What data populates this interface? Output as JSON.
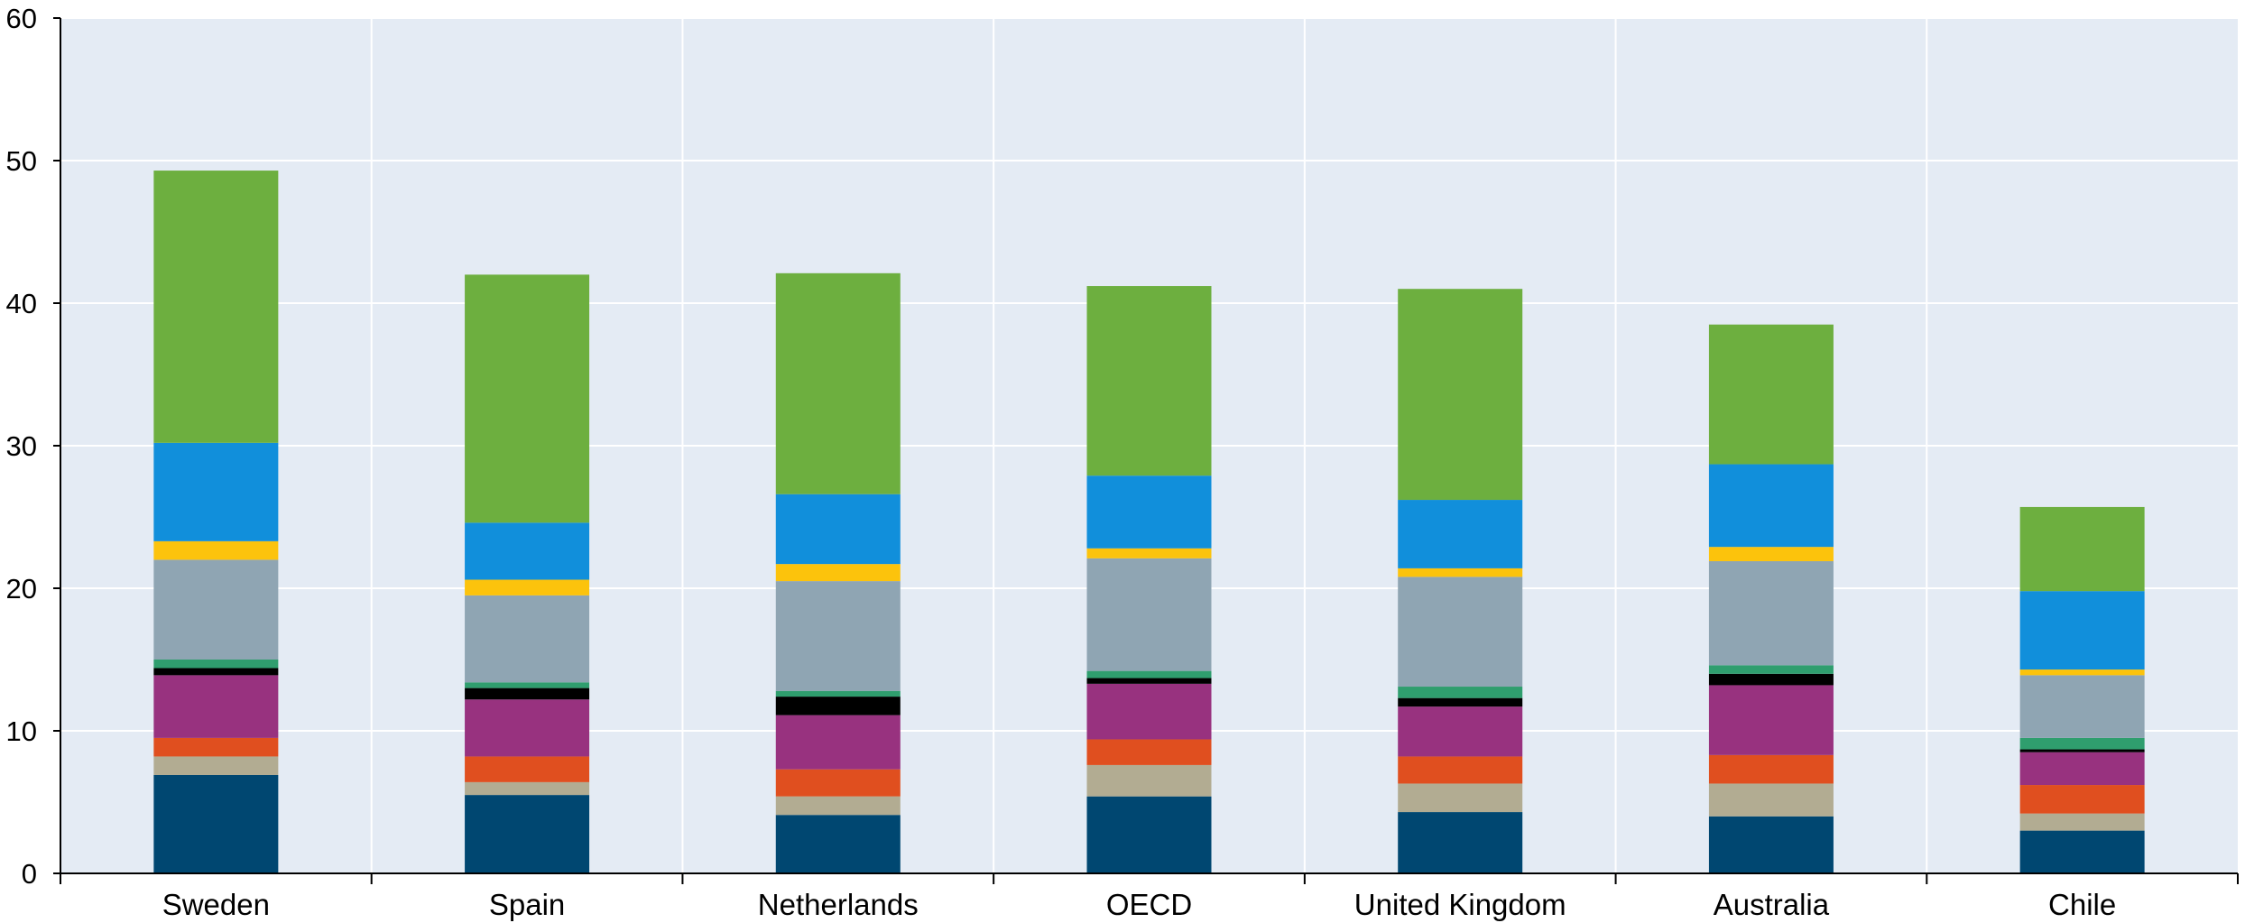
{
  "chart_data": {
    "type": "bar",
    "stacked": true,
    "categories": [
      "Sweden",
      "Spain",
      "Netherlands",
      "OECD",
      "United Kingdom",
      "Australia",
      "Chile"
    ],
    "ylim": [
      0,
      60
    ],
    "yticks": [
      0,
      10,
      20,
      30,
      40,
      50,
      60
    ],
    "ytick_labels": [
      "0",
      "10",
      "20",
      "30",
      "40",
      "50",
      "60"
    ],
    "grid": true,
    "background": "#e4ebf4",
    "series": [
      {
        "color": "#004771",
        "values": [
          6.9,
          5.5,
          4.1,
          5.4,
          4.3,
          4.0,
          3.0
        ]
      },
      {
        "color": "#b2ac92",
        "values": [
          1.3,
          0.9,
          1.3,
          2.2,
          2.0,
          2.3,
          1.2
        ]
      },
      {
        "color": "#e04f1f",
        "values": [
          1.3,
          1.8,
          1.9,
          1.8,
          1.9,
          2.0,
          2.0
        ]
      },
      {
        "color": "#98327f",
        "values": [
          4.4,
          4.0,
          3.8,
          3.9,
          3.5,
          4.9,
          2.3
        ]
      },
      {
        "color": "#000000",
        "values": [
          0.5,
          0.8,
          1.3,
          0.4,
          0.6,
          0.8,
          0.2
        ]
      },
      {
        "color": "#2f9e6e",
        "values": [
          0.6,
          0.4,
          0.4,
          0.5,
          0.8,
          0.6,
          0.8
        ]
      },
      {
        "color": "#8fa5b3",
        "values": [
          7.0,
          6.1,
          7.7,
          7.9,
          7.7,
          7.3,
          4.4
        ]
      },
      {
        "color": "#fcc30c",
        "values": [
          1.3,
          1.1,
          1.2,
          0.7,
          0.6,
          1.0,
          0.4
        ]
      },
      {
        "color": "#118fdb",
        "values": [
          6.9,
          4.0,
          4.9,
          5.1,
          4.8,
          5.8,
          5.5
        ]
      },
      {
        "color": "#6daf3f",
        "values": [
          19.1,
          17.4,
          15.5,
          13.3,
          14.8,
          9.8,
          5.9
        ]
      }
    ]
  }
}
